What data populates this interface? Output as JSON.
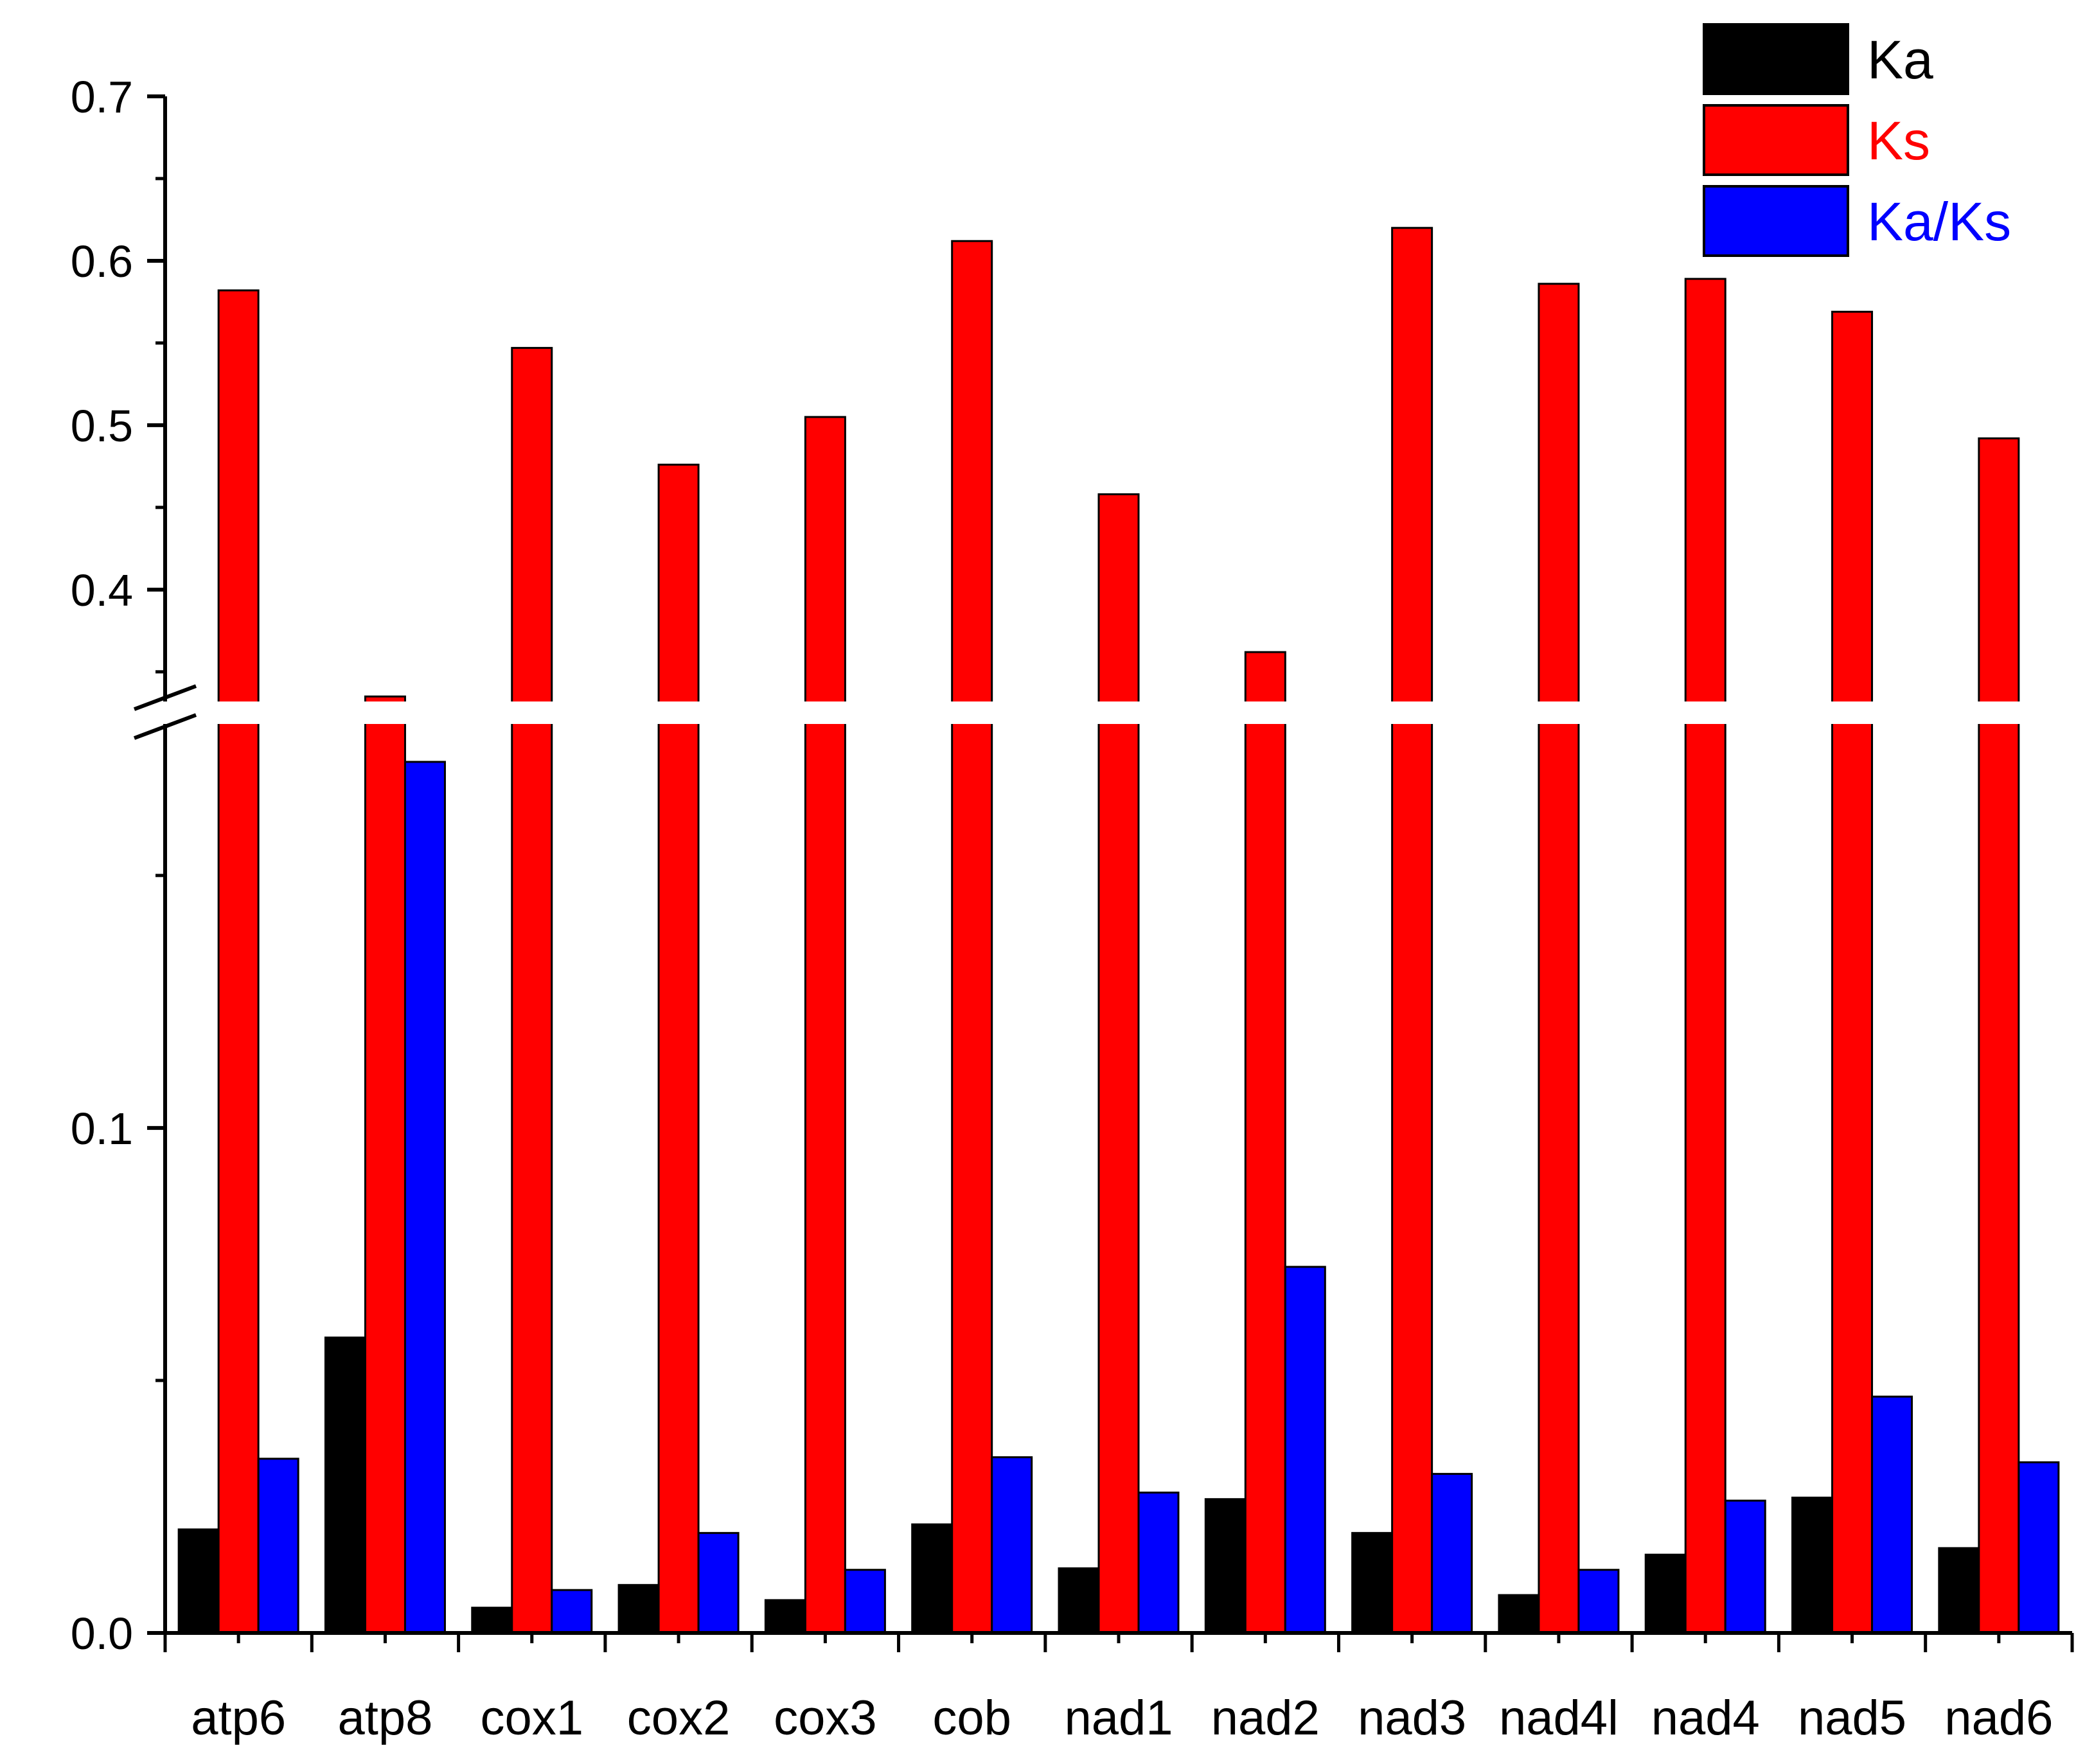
{
  "chart_data": {
    "type": "bar",
    "title": "",
    "xlabel": "",
    "ylabel": "",
    "grid": false,
    "axis_break": {
      "lower_max": 0.18,
      "upper_min": 0.33
    },
    "ylim_lower": [
      0.0,
      0.18
    ],
    "ylim_upper": [
      0.33,
      0.7
    ],
    "y_tick_labels": [
      "0.0",
      "0.1",
      "0.4",
      "0.5",
      "0.6",
      "0.7"
    ],
    "categories": [
      "atp6",
      "atp8",
      "cox1",
      "cox2",
      "cox3",
      "cob",
      "nad1",
      "nad2",
      "nad3",
      "nad4l",
      "nad4",
      "nad5",
      "nad6"
    ],
    "series": [
      {
        "name": "Ka",
        "color": "#000000",
        "values": [
          0.0205,
          0.0585,
          0.005,
          0.0095,
          0.0065,
          0.0215,
          0.0128,
          0.0265,
          0.0198,
          0.0075,
          0.0155,
          0.0268,
          0.0168
        ]
      },
      {
        "name": "Ks",
        "color": "#ff0000",
        "values": [
          0.582,
          0.335,
          0.547,
          0.476,
          0.505,
          0.612,
          0.458,
          0.362,
          0.62,
          0.586,
          0.589,
          0.569,
          0.492
        ]
      },
      {
        "name": "Ka/Ks",
        "color": "#0000ff",
        "values": [
          0.0345,
          0.1725,
          0.0085,
          0.0198,
          0.0125,
          0.0348,
          0.0278,
          0.0725,
          0.0315,
          0.0125,
          0.0262,
          0.0468,
          0.0338
        ]
      }
    ],
    "legend": {
      "position": "top-right",
      "labels": [
        "Ka",
        "Ks",
        "Ka/Ks"
      ]
    }
  }
}
